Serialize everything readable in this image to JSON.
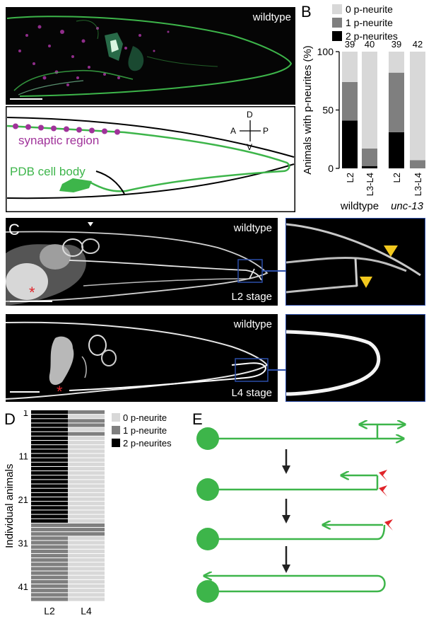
{
  "panels": {
    "A": {
      "letter": "A",
      "micrograph_label": "wildtype",
      "schematic": {
        "synaptic_region": "synaptic region",
        "pdb_cell_body": "PDB cell body",
        "compass": {
          "D": "D",
          "V": "V",
          "A": "A",
          "P": "P"
        }
      }
    },
    "B": {
      "letter": "B"
    },
    "C": {
      "letter": "C",
      "top_label": "wildtype",
      "top_stage": "L2 stage",
      "bottom_label": "wildtype",
      "bottom_stage": "L4 stage"
    },
    "D": {
      "letter": "D"
    },
    "E": {
      "letter": "E"
    }
  },
  "colors": {
    "zero": "#d8d8d8",
    "one": "#7f7f7f",
    "two": "#000000",
    "green": "#3db54a",
    "magenta": "#a0329a",
    "red": "#e0242a",
    "yellow": "#f2c81e",
    "blue": "#2b4da8"
  },
  "chart_data": [
    {
      "type": "bar",
      "stacked": true,
      "ylabel": "Animals with p-neurites (%)",
      "ylim": [
        0,
        100
      ],
      "yticks": [
        0,
        50,
        100
      ],
      "categories": [
        "L2",
        "L3-L4",
        "L2",
        "L3-L4"
      ],
      "groups": [
        {
          "label": "wildtype",
          "italic": false
        },
        {
          "label": "unc-13",
          "italic": true
        }
      ],
      "n_labels": [
        "39",
        "40",
        "39",
        "42"
      ],
      "series": [
        {
          "name": "2 p-neurites",
          "values": [
            41,
            2,
            31,
            0
          ]
        },
        {
          "name": "1 p-neurite",
          "values": [
            33,
            15,
            51,
            7
          ]
        },
        {
          "name": "0 p-neurite",
          "values": [
            26,
            83,
            18,
            93
          ]
        }
      ],
      "legend": "top-right"
    },
    {
      "type": "heatmap",
      "ylabel": "Individual animals",
      "columns": [
        "L2",
        "L4"
      ],
      "row_ticks": [
        "1",
        "11",
        "21",
        "31",
        "41"
      ],
      "legend_entries": [
        "0 p-neurite",
        "1 p-neurite",
        "2 p-neurites"
      ],
      "rows": [
        {
          "count": 1,
          "l2": 2,
          "l4": 1
        },
        {
          "count": 1,
          "l2": 2,
          "l4": 0
        },
        {
          "count": 2,
          "l2": 2,
          "l4": 1
        },
        {
          "count": 1,
          "l2": 2,
          "l4": 0
        },
        {
          "count": 1,
          "l2": 2,
          "l4": 1
        },
        {
          "count": 20,
          "l2": 2,
          "l4": 0
        },
        {
          "count": 3,
          "l2": 1,
          "l4": 1
        },
        {
          "count": 15,
          "l2": 1,
          "l4": 0
        }
      ]
    }
  ]
}
